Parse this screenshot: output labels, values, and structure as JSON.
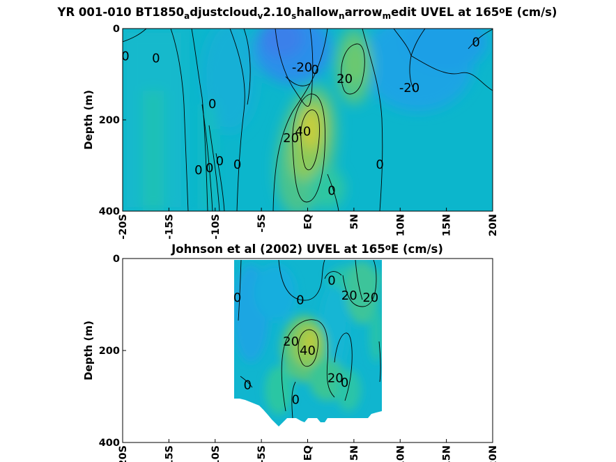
{
  "chart_data": [
    {
      "type": "heatmap",
      "title_parts": [
        {
          "t": "YR 001-010 BT1850"
        },
        {
          "t": "a",
          "sub": true
        },
        {
          "t": "djustcloud"
        },
        {
          "t": "v",
          "sub": true
        },
        {
          "t": "2.10"
        },
        {
          "t": "s",
          "sub": true
        },
        {
          "t": "hallow"
        },
        {
          "t": "n",
          "sub": true
        },
        {
          "t": "arrow"
        },
        {
          "t": "m",
          "sub": true
        },
        {
          "t": "edit UVEL at 165"
        },
        {
          "t": "o",
          "sup": true
        },
        {
          "t": "E (cm/s)"
        }
      ],
      "ylabel": "Depth (m)",
      "y_ticks": [
        0,
        200,
        400
      ],
      "ylim": [
        0,
        400
      ],
      "x_ticks": [
        "-20S",
        "-15S",
        "-10S",
        "-5S",
        "EQ",
        "5N",
        "10N",
        "15N",
        "20N"
      ],
      "xlim": [
        -20,
        20
      ],
      "contour_labels": [
        {
          "text": "0",
          "lat": -19.7,
          "depth": 60
        },
        {
          "text": "0",
          "lat": -16.4,
          "depth": 65
        },
        {
          "text": "-20",
          "lat": -0.6,
          "depth": 85
        },
        {
          "text": "0",
          "lat": 0.8,
          "depth": 90
        },
        {
          "text": "20",
          "lat": 4.0,
          "depth": 110
        },
        {
          "text": "-20",
          "lat": 11.0,
          "depth": 130
        },
        {
          "text": "0",
          "lat": 18.2,
          "depth": 30
        },
        {
          "text": "0",
          "lat": -10.3,
          "depth": 165
        },
        {
          "text": "40",
          "lat": -0.5,
          "depth": 225
        },
        {
          "text": "20",
          "lat": -1.8,
          "depth": 240
        },
        {
          "text": "0",
          "lat": -9.5,
          "depth": 290
        },
        {
          "text": "0",
          "lat": -10.6,
          "depth": 305
        },
        {
          "text": "0",
          "lat": -11.8,
          "depth": 310
        },
        {
          "text": "0",
          "lat": -7.6,
          "depth": 298
        },
        {
          "text": "0",
          "lat": 7.8,
          "depth": 298
        },
        {
          "text": "0",
          "lat": 2.6,
          "depth": 355
        }
      ],
      "colormap": [
        "#3d7de8",
        "#1e9ee6",
        "#09b8d2",
        "#2cc6a4",
        "#7ac964",
        "#c4cd3a",
        "#e8d32c"
      ]
    },
    {
      "type": "heatmap",
      "title_parts": [
        {
          "t": "Johnson et al (2002) UVEL at 165"
        },
        {
          "t": "o",
          "sup": true
        },
        {
          "t": "E (cm/s)"
        }
      ],
      "ylabel": "Depth (m)",
      "y_ticks": [
        0,
        200,
        400
      ],
      "ylim": [
        0,
        400
      ],
      "x_ticks": [
        "-20S",
        "-15S",
        "-10S",
        "-5S",
        "EQ",
        "5N",
        "10N",
        "15N",
        "20N"
      ],
      "xlim": [
        -20,
        20
      ],
      "data_lat_range": [
        -8,
        8
      ],
      "contour_labels": [
        {
          "text": "0",
          "lat": -7.6,
          "depth": 85
        },
        {
          "text": "0",
          "lat": -0.8,
          "depth": 90
        },
        {
          "text": "0",
          "lat": 2.6,
          "depth": 48
        },
        {
          "text": "20",
          "lat": 4.5,
          "depth": 80
        },
        {
          "text": "20",
          "lat": 6.8,
          "depth": 85
        },
        {
          "text": "20",
          "lat": -1.8,
          "depth": 180
        },
        {
          "text": "40",
          "lat": 0.0,
          "depth": 200
        },
        {
          "text": "0",
          "lat": -6.5,
          "depth": 275
        },
        {
          "text": "20",
          "lat": 3.0,
          "depth": 260
        },
        {
          "text": "0",
          "lat": 4.0,
          "depth": 270
        },
        {
          "text": "0",
          "lat": -1.3,
          "depth": 307
        }
      ],
      "colormap": [
        "#3d7de8",
        "#1e9ee6",
        "#09b8d2",
        "#2cc6a4",
        "#7ac964",
        "#c4cd3a",
        "#e8d32c"
      ]
    }
  ]
}
